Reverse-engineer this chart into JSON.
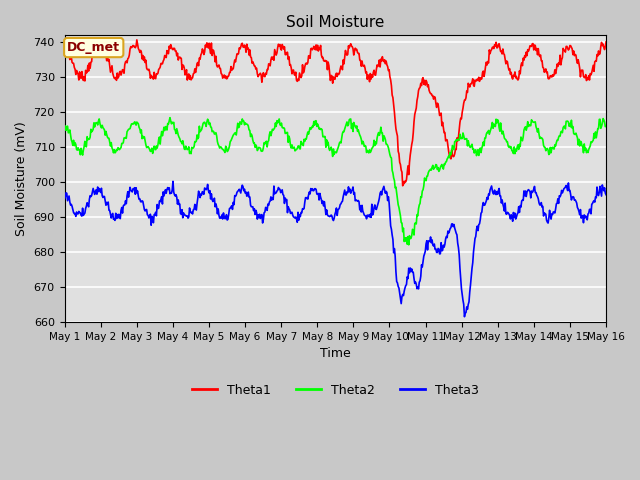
{
  "title": "Soil Moisture",
  "xlabel": "Time",
  "ylabel": "Soil Moisture (mV)",
  "ylim": [
    660,
    742
  ],
  "yticks": [
    660,
    670,
    680,
    690,
    700,
    710,
    720,
    730,
    740
  ],
  "fig_bg_color": "#c8c8c8",
  "plot_bg_color": "#e0e0e0",
  "legend_label": "DC_met",
  "legend_entries": [
    "Theta1",
    "Theta2",
    "Theta3"
  ],
  "line_colors": [
    "red",
    "lime",
    "blue"
  ],
  "line_width": 1.2,
  "num_points": 720,
  "x_start": 0,
  "x_end": 15,
  "xtick_labels": [
    "May 1",
    "May 2",
    "May 3",
    "May 4",
    "May 5",
    "May 6",
    "May 7",
    "May 8",
    "May 9",
    "May 10",
    "May 11",
    "May 12",
    "May 13",
    "May 14",
    "May 15",
    "May 16"
  ],
  "xtick_positions": [
    0,
    1,
    2,
    3,
    4,
    5,
    6,
    7,
    8,
    9,
    10,
    11,
    12,
    13,
    14,
    15
  ]
}
